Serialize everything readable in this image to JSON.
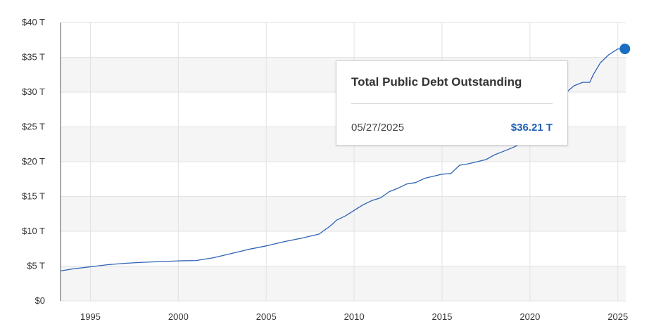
{
  "chart_data": {
    "type": "line",
    "title": "",
    "xlabel": "",
    "ylabel": "",
    "xlim": [
      1993.3,
      2025.45
    ],
    "ylim": [
      0,
      40
    ],
    "x_ticks": [
      1995,
      2000,
      2005,
      2010,
      2015,
      2020,
      2025
    ],
    "x_tick_labels": [
      "1995",
      "2000",
      "2005",
      "2010",
      "2015",
      "2020",
      "2025"
    ],
    "y_ticks": [
      0,
      5,
      10,
      15,
      20,
      25,
      30,
      35,
      40
    ],
    "y_tick_labels": [
      "$0",
      "$5 T",
      "$10 T",
      "$15 T",
      "$20 T",
      "$25 T",
      "$30 T",
      "$35 T",
      "$40 T"
    ],
    "grid": true,
    "line_color": "#2e63b5",
    "marker_color": "#1a6fc2",
    "series": [
      {
        "x": [
          1993.3,
          1994,
          1995,
          1996,
          1997,
          1998,
          1999,
          2000,
          2001,
          2002,
          2003,
          2004,
          2005,
          2006,
          2007,
          2008,
          2008.5,
          2008.75,
          2009,
          2009.5,
          2010,
          2010.5,
          2011,
          2011.5,
          2012,
          2012.5,
          2013,
          2013.5,
          2014,
          2014.5,
          2015,
          2015.5,
          2016,
          2016.5,
          2017,
          2017.5,
          2018,
          2018.5,
          2019,
          2019.5,
          2020,
          2020.25,
          2020.5,
          2021,
          2021.5,
          2022,
          2022.5,
          2023,
          2023.4,
          2023.6,
          2024,
          2024.5,
          2025,
          2025.4
        ],
        "y": [
          4.3,
          4.6,
          4.9,
          5.2,
          5.4,
          5.55,
          5.65,
          5.75,
          5.8,
          6.2,
          6.8,
          7.4,
          7.9,
          8.5,
          9.0,
          9.6,
          10.5,
          11.0,
          11.6,
          12.2,
          13.0,
          13.8,
          14.4,
          14.8,
          15.7,
          16.2,
          16.8,
          17.0,
          17.6,
          17.9,
          18.2,
          18.3,
          19.5,
          19.7,
          20.0,
          20.3,
          21.0,
          21.5,
          22.0,
          22.6,
          23.2,
          25.0,
          26.7,
          27.8,
          28.4,
          29.8,
          30.9,
          31.4,
          31.4,
          32.5,
          34.2,
          35.4,
          36.2,
          36.21
        ]
      }
    ],
    "highlight_point": {
      "x": 2025.4,
      "y": 36.21
    }
  },
  "tooltip": {
    "title": "Total Public Debt Outstanding",
    "date": "05/27/2025",
    "value": "$36.21 T"
  }
}
